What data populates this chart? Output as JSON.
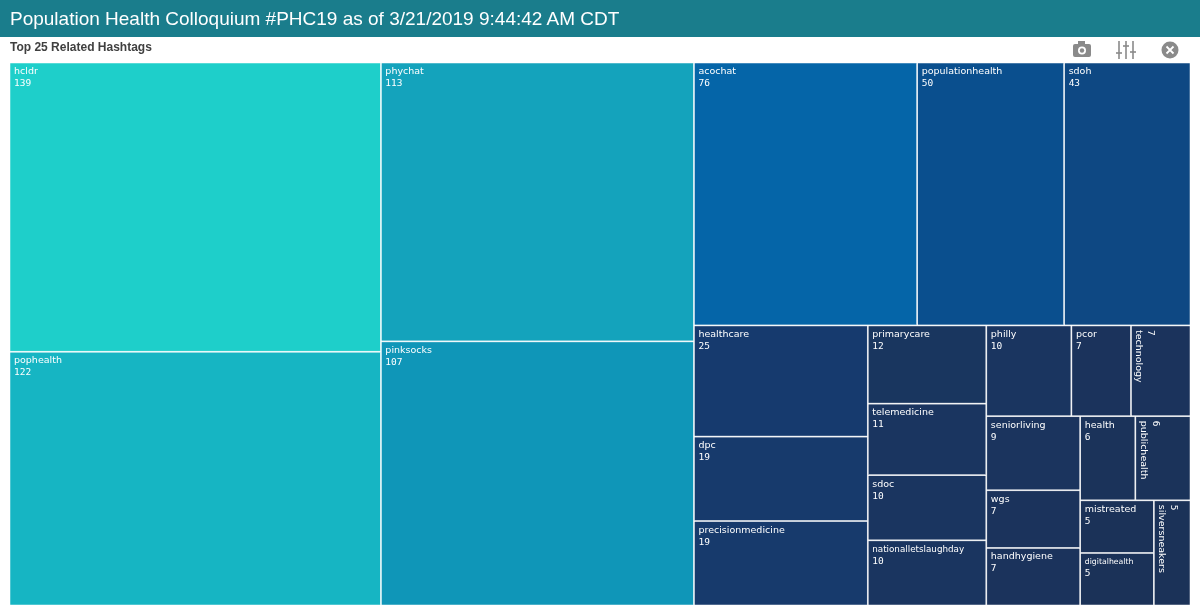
{
  "chart_data": {
    "type": "other",
    "title": "Population Health Colloquium #PHC19 as of 3/21/2019 9:44:42 AM CDT",
    "subtitle": "Top 25 Related Hashtags",
    "categories": [
      "hcldr",
      "pophealth",
      "phychat",
      "pinksocks",
      "acochat",
      "populationhealth",
      "sdoh",
      "healthcare",
      "dpc",
      "precisionmedicine",
      "primarycare",
      "telemedicine",
      "sdoc",
      "nationalletslaughday",
      "philly",
      "pcor",
      "technology",
      "seniorliving",
      "wgs",
      "handhygiene",
      "health",
      "publichealth",
      "mistreated",
      "digitalhealth",
      "silversneakers"
    ],
    "values": [
      139,
      122,
      113,
      107,
      76,
      50,
      43,
      25,
      19,
      19,
      12,
      11,
      10,
      10,
      10,
      7,
      7,
      9,
      7,
      7,
      6,
      6,
      5,
      5,
      5
    ],
    "colors": [
      "#1ecfca",
      "#16b5c3",
      "#14a3bc",
      "#0f96b8",
      "#0565a8",
      "#0a4f8e",
      "#0e4883",
      "#163a6e",
      "#173a6c",
      "#173a6c",
      "#19365f",
      "#1a3560",
      "#1a3560",
      "#1a3560",
      "#1a3560",
      "#1b335c",
      "#1b335c",
      "#1b345e",
      "#1b335c",
      "#1b335c",
      "#1b335a",
      "#1b335a",
      "#1b3258",
      "#1b3258",
      "#1b3258"
    ],
    "data_labels": true
  }
}
